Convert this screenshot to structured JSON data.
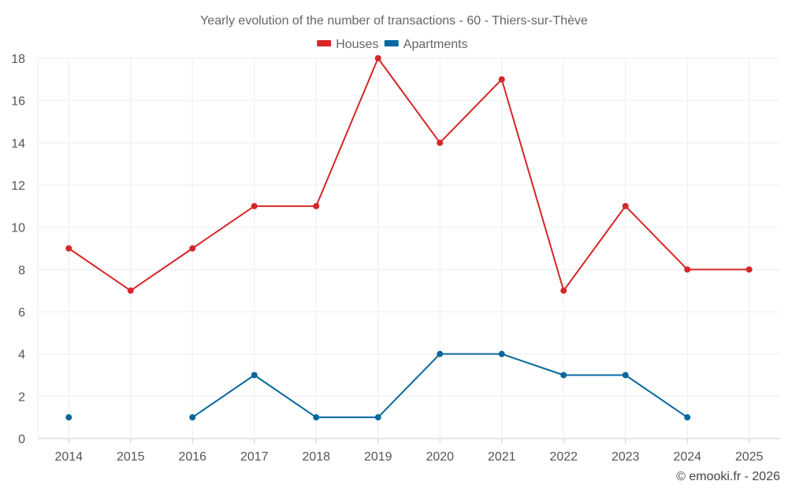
{
  "chart_data": {
    "type": "line",
    "title": "Yearly evolution of the number of transactions - 60 - Thiers-sur-Thève",
    "x": [
      "2014",
      "2015",
      "2016",
      "2017",
      "2018",
      "2019",
      "2020",
      "2021",
      "2022",
      "2023",
      "2024",
      "2025"
    ],
    "series": [
      {
        "name": "Houses",
        "color": "#d62728",
        "values": [
          9,
          7,
          9,
          11,
          11,
          18,
          14,
          17,
          7,
          11,
          8,
          8
        ]
      },
      {
        "name": "Apartments",
        "color": "#08689e",
        "values": [
          1,
          null,
          1,
          3,
          1,
          1,
          4,
          4,
          3,
          3,
          1,
          null
        ]
      }
    ],
    "ylim": [
      0,
      18
    ],
    "yticks": [
      0,
      2,
      4,
      6,
      8,
      10,
      12,
      14,
      16,
      18
    ],
    "grid": true,
    "legend_position": "top-center"
  },
  "credit": "© emooki.fr - 2026"
}
